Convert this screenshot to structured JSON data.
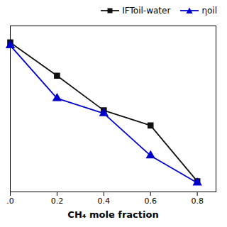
{
  "chart_data": {
    "type": "line",
    "x": [
      0.0,
      0.2,
      0.4,
      0.6,
      0.8
    ],
    "series": [
      {
        "name": "IFToil-water",
        "color": "#111111",
        "marker": "square",
        "values": [
          0.97,
          0.75,
          0.52,
          0.42,
          0.05
        ]
      },
      {
        "name": "ηoil",
        "color": "#0000cc",
        "marker": "triangle",
        "values": [
          0.95,
          0.6,
          0.5,
          0.22,
          0.04
        ]
      }
    ],
    "xlabel": "CH₄ mole fraction",
    "xlim": [
      0.0,
      0.88
    ],
    "ylim": [
      -0.02,
      1.08
    ],
    "xticks": [
      {
        "value": 0.0,
        "label": ".0"
      },
      0.2,
      0.4,
      0.6,
      0.8
    ],
    "yticks": [],
    "tick_labels": "x",
    "legend": "upper right",
    "grid": false
  }
}
